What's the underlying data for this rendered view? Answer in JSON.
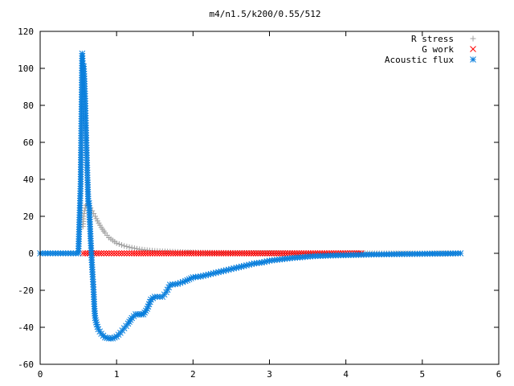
{
  "chart_data": {
    "type": "scatter",
    "title": "m4/n1.5/k200/0.55/512",
    "xlabel": "",
    "ylabel": "",
    "xlim": [
      0,
      6
    ],
    "ylim": [
      -60,
      120
    ],
    "xticks": [
      "0",
      "1",
      "2",
      "3",
      "4",
      "5",
      "6"
    ],
    "yticks": [
      "-60",
      "-40",
      "-20",
      "0",
      "20",
      "40",
      "60",
      "80",
      "100",
      "120"
    ],
    "grid": false,
    "legend": "top-right",
    "series": [
      {
        "name": "R stress",
        "marker": "plus",
        "color": "#a0a0a0",
        "points": [
          [
            0.56,
            14.5
          ],
          [
            0.57,
            20
          ],
          [
            0.58,
            23
          ],
          [
            0.6,
            26
          ],
          [
            0.62,
            26.5
          ],
          [
            0.64,
            25.5
          ],
          [
            0.66,
            24.5
          ],
          [
            0.68,
            23
          ],
          [
            0.7,
            21.5
          ],
          [
            0.72,
            20
          ],
          [
            0.75,
            17.5
          ],
          [
            0.8,
            14
          ],
          [
            0.85,
            11
          ],
          [
            0.9,
            8.5
          ],
          [
            0.95,
            7
          ],
          [
            1.0,
            5.5
          ],
          [
            1.1,
            4
          ],
          [
            1.2,
            3
          ],
          [
            1.3,
            2.2
          ],
          [
            1.4,
            1.7
          ],
          [
            1.5,
            1.3
          ],
          [
            1.7,
            0.9
          ],
          [
            1.9,
            0.6
          ],
          [
            2.1,
            0.4
          ],
          [
            2.4,
            0.3
          ],
          [
            2.8,
            0.2
          ],
          [
            3.2,
            0.1
          ],
          [
            3.6,
            0.05
          ],
          [
            4.0,
            0.03
          ],
          [
            4.5,
            0.02
          ],
          [
            5.0,
            0.01
          ],
          [
            5.5,
            0.0
          ]
        ]
      },
      {
        "name": "G work",
        "marker": "cross",
        "color": "#ff0000",
        "points": [
          [
            0.56,
            0
          ],
          [
            0.8,
            0
          ],
          [
            1.0,
            0
          ],
          [
            1.2,
            0
          ],
          [
            1.5,
            0
          ],
          [
            1.8,
            0
          ],
          [
            2.1,
            0
          ],
          [
            2.4,
            0
          ],
          [
            2.7,
            0
          ],
          [
            3.0,
            0
          ],
          [
            3.3,
            0
          ],
          [
            3.6,
            0
          ],
          [
            3.9,
            0
          ],
          [
            4.2,
            0
          ]
        ]
      },
      {
        "name": "Acoustic flux",
        "marker": "star",
        "color": "#0a7fdc",
        "points": [
          [
            0.0,
            0
          ],
          [
            0.1,
            0
          ],
          [
            0.2,
            0
          ],
          [
            0.3,
            0
          ],
          [
            0.4,
            0
          ],
          [
            0.5,
            0
          ],
          [
            0.53,
            37.5
          ],
          [
            0.55,
            108
          ],
          [
            0.56,
            100
          ],
          [
            0.57,
            101
          ],
          [
            0.58,
            93
          ],
          [
            0.59,
            81
          ],
          [
            0.6,
            66.5
          ],
          [
            0.61,
            53
          ],
          [
            0.62,
            39.5
          ],
          [
            0.63,
            27
          ],
          [
            0.64,
            27
          ],
          [
            0.65,
            17
          ],
          [
            0.66,
            8
          ],
          [
            0.68,
            -7.5
          ],
          [
            0.69,
            -14
          ],
          [
            0.7,
            -21
          ],
          [
            0.71,
            -30
          ],
          [
            0.72,
            -35
          ],
          [
            0.74,
            -38.5
          ],
          [
            0.76,
            -41
          ],
          [
            0.8,
            -43.5
          ],
          [
            0.85,
            -45.5
          ],
          [
            0.9,
            -46
          ],
          [
            0.95,
            -46
          ],
          [
            1.0,
            -45
          ],
          [
            1.05,
            -43
          ],
          [
            1.1,
            -40.5
          ],
          [
            1.15,
            -38
          ],
          [
            1.2,
            -35
          ],
          [
            1.25,
            -33
          ],
          [
            1.3,
            -33
          ],
          [
            1.35,
            -33
          ],
          [
            1.4,
            -30
          ],
          [
            1.45,
            -25
          ],
          [
            1.5,
            -23.5
          ],
          [
            1.6,
            -23.5
          ],
          [
            1.65,
            -21
          ],
          [
            1.7,
            -17
          ],
          [
            1.8,
            -16.5
          ],
          [
            1.9,
            -15
          ],
          [
            2.0,
            -13
          ],
          [
            2.1,
            -12.5
          ],
          [
            2.2,
            -11.5
          ],
          [
            2.3,
            -10.5
          ],
          [
            2.4,
            -9.5
          ],
          [
            2.5,
            -8.5
          ],
          [
            2.6,
            -7.5
          ],
          [
            2.7,
            -6.5
          ],
          [
            2.8,
            -5.5
          ],
          [
            2.9,
            -5
          ],
          [
            3.0,
            -4
          ],
          [
            3.1,
            -3.5
          ],
          [
            3.2,
            -3
          ],
          [
            3.3,
            -2.5
          ],
          [
            3.4,
            -2.2
          ],
          [
            3.5,
            -1.8
          ],
          [
            3.6,
            -1.5
          ],
          [
            3.8,
            -1.2
          ],
          [
            4.0,
            -1
          ],
          [
            4.2,
            -0.8
          ],
          [
            4.4,
            -0.6
          ],
          [
            4.6,
            -0.5
          ],
          [
            4.8,
            -0.4
          ],
          [
            5.0,
            -0.3
          ],
          [
            5.2,
            -0.2
          ],
          [
            5.4,
            -0.1
          ],
          [
            5.5,
            0
          ]
        ]
      }
    ]
  }
}
